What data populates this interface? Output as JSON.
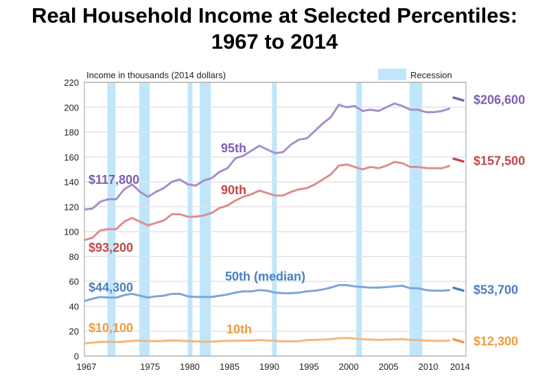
{
  "chart_data": {
    "type": "line",
    "title": "Real Household Income at Selected Percentiles: 1967 to 2014",
    "title_lines": [
      "Real Household Income at Selected Percentiles:",
      "1967 to 2014"
    ],
    "ylabel": "Income in thousands (2014 dollars)",
    "xlabel": "",
    "ylim": [
      0,
      220
    ],
    "xlim": [
      1967,
      2015
    ],
    "yticks": [
      0,
      20,
      40,
      60,
      80,
      100,
      120,
      140,
      160,
      180,
      200,
      220
    ],
    "xticks": [
      1967,
      1975,
      1980,
      1985,
      1990,
      1995,
      2000,
      2005,
      2010,
      2014
    ],
    "grid": true,
    "legend": {
      "label": "Recession",
      "placement": "top-right",
      "color": "#bfe6fa"
    },
    "recessions": [
      [
        1969.9,
        1970.9
      ],
      [
        1973.9,
        1975.2
      ],
      [
        1980.0,
        1980.6
      ],
      [
        1981.5,
        1982.9
      ],
      [
        1990.6,
        1991.2
      ],
      [
        2001.2,
        2001.9
      ],
      [
        2007.9,
        2009.5
      ]
    ],
    "x": [
      1967,
      1968,
      1969,
      1970,
      1971,
      1972,
      1973,
      1974,
      1975,
      1976,
      1977,
      1978,
      1979,
      1980,
      1981,
      1982,
      1983,
      1984,
      1985,
      1986,
      1987,
      1988,
      1989,
      1990,
      1991,
      1992,
      1993,
      1994,
      1995,
      1996,
      1997,
      1998,
      1999,
      2000,
      2001,
      2002,
      2003,
      2004,
      2005,
      2006,
      2007,
      2008,
      2009,
      2010,
      2011,
      2012,
      2013
    ],
    "series": [
      {
        "name": "95th",
        "color": "#a58fc8",
        "label_color": "#7d5fae",
        "start_label": "$117,800",
        "end_label": "$206,600",
        "end_value": 206.6,
        "values": [
          117.8,
          118.5,
          124,
          126,
          126,
          134,
          138,
          132,
          128,
          132,
          135,
          140,
          142,
          138,
          137,
          141,
          143,
          148,
          151,
          159,
          161,
          165,
          169,
          166,
          163,
          164,
          170,
          174,
          175,
          181,
          187,
          192,
          202,
          200,
          201,
          197,
          198,
          197,
          200,
          203,
          201,
          198,
          198,
          196,
          196,
          197,
          199
        ]
      },
      {
        "name": "90th",
        "color": "#dc8c8c",
        "label_color": "#c24747",
        "start_label": "$93,200",
        "end_label": "$157,500",
        "end_value": 157.5,
        "values": [
          93.2,
          95,
          101,
          102,
          102,
          108,
          111,
          108,
          105,
          107,
          109,
          114,
          114,
          112,
          112,
          113,
          115,
          119,
          121,
          125,
          128,
          130,
          133,
          131,
          129,
          129,
          132,
          134,
          135,
          138,
          142,
          146,
          153,
          154,
          152,
          150,
          152,
          151,
          153,
          156,
          155,
          152,
          152,
          151,
          151,
          151,
          153
        ]
      },
      {
        "name": "50th (median)",
        "color": "#7da4d8",
        "label_color": "#4a7fc1",
        "start_label": "$44,300",
        "end_label": "$53,700",
        "end_value": 53.7,
        "values": [
          44.3,
          46,
          47.5,
          47,
          47,
          49,
          50,
          48.5,
          47,
          48,
          48.5,
          50,
          50,
          48,
          47.5,
          47.5,
          47.5,
          48.5,
          49.5,
          51,
          52,
          52,
          53,
          52.5,
          51,
          50.5,
          50.5,
          51,
          52,
          52.5,
          53.5,
          55,
          57,
          57,
          56,
          55.5,
          55,
          55,
          55.5,
          56,
          56.5,
          54.5,
          54.5,
          53,
          52.5,
          52.5,
          53
        ]
      },
      {
        "name": "10th",
        "color": "#f7b57a",
        "label_color": "#f29a3e",
        "start_label": "$10,100",
        "end_label": "$12,300",
        "end_value": 12.3,
        "values": [
          10.1,
          10.8,
          11.3,
          11.5,
          11.2,
          11.6,
          12.2,
          12.4,
          12.0,
          12.0,
          12.2,
          12.5,
          12.4,
          12.0,
          11.8,
          11.6,
          11.6,
          12.0,
          12.2,
          12.3,
          12.4,
          12.5,
          12.8,
          12.5,
          12.2,
          11.8,
          11.8,
          12.0,
          12.8,
          13.0,
          13.2,
          13.6,
          14.3,
          14.5,
          14.0,
          13.5,
          13.2,
          13.0,
          13.2,
          13.4,
          13.5,
          13.0,
          12.8,
          12.4,
          12.2,
          12.2,
          12.4
        ]
      }
    ]
  }
}
